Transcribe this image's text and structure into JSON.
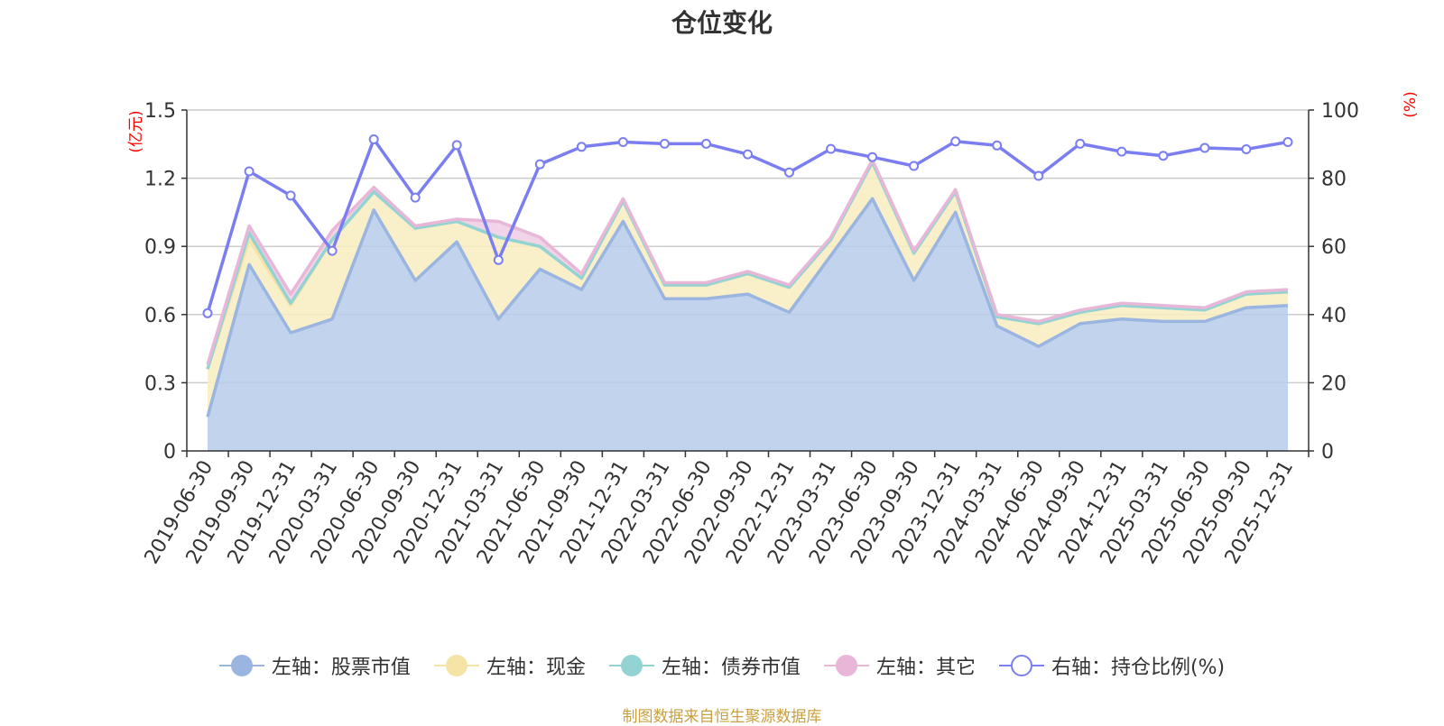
{
  "chart_data": {
    "type": "area",
    "title": "仓位变化",
    "left_axis_unit": "(亿元)",
    "right_axis_unit": "(%)",
    "left_ylim": [
      0,
      1.5
    ],
    "left_ticks": [
      "0",
      "0.3",
      "0.6",
      "0.9",
      "1.2",
      "1.5"
    ],
    "right_ylim": [
      0,
      100
    ],
    "right_ticks": [
      "0",
      "20",
      "40",
      "60",
      "80",
      "100"
    ],
    "grid": true,
    "legend_position": "bottom",
    "categories": [
      "2019-06-30",
      "2019-09-30",
      "2019-12-31",
      "2020-03-31",
      "2020-06-30",
      "2020-09-30",
      "2020-12-31",
      "2021-03-31",
      "2021-06-30",
      "2021-09-30",
      "2021-12-31",
      "2022-03-31",
      "2022-06-30",
      "2022-09-30",
      "2022-12-31",
      "2023-03-31",
      "2023-06-30",
      "2023-09-30",
      "2023-12-31",
      "2024-03-31",
      "2024-06-30",
      "2024-09-30",
      "2024-12-31",
      "2025-03-31",
      "2025-06-30",
      "2025-09-30",
      "2025-12-31"
    ],
    "series": [
      {
        "name": "左轴：股票市值",
        "axis": "left",
        "kind": "stacked-area",
        "color": "#9ab5e0",
        "fill": "#b6cbea",
        "values": [
          0.15,
          0.82,
          0.52,
          0.58,
          1.06,
          0.75,
          0.92,
          0.58,
          0.8,
          0.71,
          1.01,
          0.67,
          0.67,
          0.69,
          0.61,
          0.86,
          1.11,
          0.75,
          1.05,
          0.55,
          0.46,
          0.56,
          0.58,
          0.57,
          0.57,
          0.63,
          0.64
        ]
      },
      {
        "name": "左轴：现金",
        "axis": "left",
        "kind": "stacked-area",
        "color": "#f4e4a6",
        "fill": "#f8ecbf",
        "values": [
          0.21,
          0.11,
          0.12,
          0.35,
          0.08,
          0.23,
          0.09,
          0.36,
          0.1,
          0.05,
          0.09,
          0.06,
          0.06,
          0.09,
          0.11,
          0.07,
          0.16,
          0.12,
          0.09,
          0.04,
          0.1,
          0.05,
          0.06,
          0.06,
          0.05,
          0.06,
          0.06
        ]
      },
      {
        "name": "左轴：债券市值",
        "axis": "left",
        "kind": "stacked-area",
        "color": "#93d3d3",
        "fill": "#b5e2e2",
        "values": [
          0,
          0.03,
          0.01,
          0,
          0,
          0,
          0,
          0,
          0,
          0,
          0,
          0,
          0,
          0,
          0,
          0,
          0,
          0,
          0,
          0,
          0,
          0,
          0,
          0,
          0,
          0,
          0
        ]
      },
      {
        "name": "左轴：其它",
        "axis": "left",
        "kind": "stacked-area",
        "color": "#e8b7d8",
        "fill": "#efcde4",
        "values": [
          0.02,
          0.03,
          0.04,
          0.04,
          0.02,
          0.01,
          0.01,
          0.07,
          0.04,
          0.02,
          0.01,
          0.01,
          0.01,
          0.01,
          0.01,
          0.01,
          0.01,
          0.01,
          0.01,
          0.01,
          0.01,
          0.01,
          0.01,
          0.01,
          0.01,
          0.01,
          0.01
        ]
      },
      {
        "name": "右轴：持仓比例(%)",
        "axis": "right",
        "kind": "line",
        "color": "#7b7ef0",
        "values": [
          40.4,
          82.0,
          74.9,
          58.7,
          91.4,
          74.3,
          89.7,
          56.0,
          84.1,
          89.2,
          90.6,
          90.1,
          90.1,
          87.0,
          81.7,
          88.6,
          86.2,
          83.6,
          90.8,
          89.6,
          80.7,
          90.1,
          87.8,
          86.6,
          88.9,
          88.5,
          90.6
        ]
      }
    ]
  },
  "footer": {
    "source": "制图数据来自恒生聚源数据库"
  }
}
